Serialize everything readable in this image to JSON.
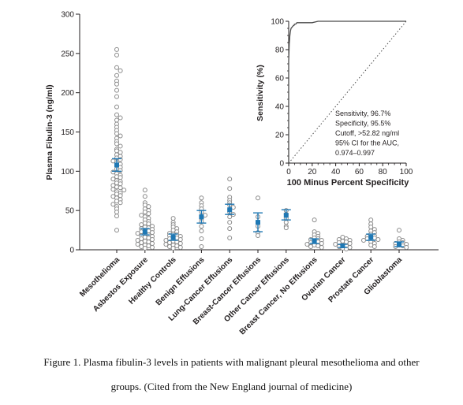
{
  "caption": {
    "line1": "Figure 1. Plasma fibulin-3 levels in patients with malignant pleural mesothelioma and other",
    "line2": "groups. (Cited from the New England journal of medicine)"
  },
  "colors": {
    "point_stroke": "#8a8a8a",
    "mean_marker": "#1f78b4",
    "axis": "#231f20"
  },
  "chart_data": [
    {
      "type": "scatter",
      "title": "",
      "xlabel": "",
      "ylabel": "Plasma Fibulin-3 (ng/ml)",
      "ylim": [
        0,
        300
      ],
      "yticks": [
        "0",
        "50",
        "100",
        "150",
        "200",
        "250",
        "300"
      ],
      "grid": false,
      "categories": [
        "Mesothelioma",
        "Asbestos Exposure",
        "Healthy Controls",
        "Benign Effusions",
        "Lung-Cancer Effusions",
        "Breast-Cancer Effusions",
        "Other Cancer Effusions",
        "Breast Cancer, No Effusions",
        "Ovarian Cancer",
        "Prostate Cancer",
        "Glioblastoma"
      ],
      "groups": [
        {
          "category": "Mesothelioma",
          "mean": 108,
          "ci": [
            100,
            116
          ],
          "points": [
            255,
            248,
            232,
            228,
            222,
            215,
            211,
            203,
            195,
            182,
            172,
            168,
            165,
            160,
            156,
            152,
            148,
            145,
            142,
            138,
            135,
            132,
            128,
            126,
            124,
            121,
            119,
            117,
            115,
            113,
            111,
            109,
            107,
            105,
            103,
            101,
            99,
            97,
            95,
            93,
            92,
            90,
            88,
            87,
            85,
            84,
            82,
            80,
            79,
            77,
            76,
            74,
            72,
            71,
            69,
            68,
            66,
            64,
            62,
            60,
            58,
            55,
            52,
            48,
            43,
            25
          ]
        },
        {
          "category": "Asbestos Exposure",
          "mean": 23,
          "ci": [
            19,
            27
          ],
          "points": [
            76,
            68,
            60,
            57,
            55,
            52,
            50,
            48,
            46,
            44,
            42,
            40,
            38,
            36,
            34,
            33,
            32,
            30,
            29,
            28,
            27,
            26,
            25,
            24,
            23,
            22,
            21,
            20,
            19,
            18,
            17,
            16,
            15,
            14,
            13,
            12,
            11,
            10,
            9,
            8,
            7,
            6,
            5,
            4,
            3,
            2
          ]
        },
        {
          "category": "Healthy Controls",
          "mean": 16,
          "ci": [
            12,
            20
          ],
          "points": [
            40,
            35,
            32,
            29,
            27,
            25,
            23,
            21,
            20,
            19,
            18,
            17,
            16,
            15,
            14,
            13,
            12,
            11,
            10,
            9,
            8,
            7,
            6,
            5,
            4,
            3,
            2
          ]
        },
        {
          "category": "Benign Effusions",
          "mean": 42,
          "ci": [
            34,
            50
          ],
          "points": [
            66,
            60,
            56,
            52,
            48,
            44,
            40,
            36,
            30,
            24,
            14,
            4
          ]
        },
        {
          "category": "Lung-Cancer Effusions",
          "mean": 51,
          "ci": [
            45,
            58
          ],
          "points": [
            90,
            78,
            67,
            63,
            60,
            57,
            54,
            51,
            48,
            45,
            42,
            35,
            27,
            15
          ]
        },
        {
          "category": "Breast-Cancer Effusions",
          "mean": 35,
          "ci": [
            23,
            47
          ],
          "points": [
            66,
            42,
            30,
            22,
            18
          ]
        },
        {
          "category": "Other Cancer Effusions",
          "mean": 44,
          "ci": [
            38,
            51
          ],
          "points": [
            50,
            45,
            40,
            35,
            30,
            28
          ]
        },
        {
          "category": "Breast Cancer, No Effusions",
          "mean": 11,
          "ci": [
            8,
            14
          ],
          "points": [
            38,
            23,
            21,
            19,
            17,
            15,
            14,
            13,
            12,
            11,
            10,
            9,
            8,
            7,
            6,
            5,
            4,
            3
          ]
        },
        {
          "category": "Ovarian Cancer",
          "mean": 5,
          "ci": [
            3,
            7
          ],
          "points": [
            16,
            14,
            13,
            12,
            11,
            10,
            9,
            8,
            7,
            6,
            5,
            4,
            3,
            2,
            1
          ]
        },
        {
          "category": "Prostate Cancer",
          "mean": 16,
          "ci": [
            12,
            20
          ],
          "points": [
            38,
            33,
            29,
            26,
            24,
            22,
            20,
            18,
            17,
            16,
            15,
            14,
            13,
            12,
            10,
            8,
            6,
            4
          ]
        },
        {
          "category": "Glioblastoma",
          "mean": 7,
          "ci": [
            4,
            10
          ],
          "points": [
            25,
            14,
            12,
            10,
            9,
            8,
            7,
            6,
            5,
            4,
            3
          ]
        }
      ]
    },
    {
      "type": "line",
      "title": "",
      "xlabel": "100 Minus Percent Specificity",
      "ylabel": "Sensitivity (%)",
      "xlim": [
        0,
        100
      ],
      "ylim": [
        0,
        100
      ],
      "xticks": [
        "0",
        "20",
        "40",
        "60",
        "80",
        "100"
      ],
      "yticks": [
        "0",
        "20",
        "40",
        "60",
        "80",
        "100"
      ],
      "grid": false,
      "series": [
        {
          "values_x": [
            0,
            0,
            0.5,
            1,
            1.5,
            2,
            3,
            4,
            4.5,
            5,
            6,
            7,
            8,
            20,
            25,
            100
          ],
          "values_y": [
            0,
            72,
            84,
            90,
            93,
            95,
            96,
            97,
            97,
            98,
            98,
            99,
            99,
            99,
            100,
            100
          ]
        },
        {
          "values_x": [
            0,
            100
          ],
          "values_y": [
            0,
            100
          ],
          "style": "dotted"
        }
      ],
      "annotation": [
        "Sensitivity, 96.7%",
        "Specificity, 95.5%",
        "Cutoff, >52.82 ng/ml",
        "95% CI for the AUC,",
        "0.974–0.997"
      ]
    }
  ]
}
